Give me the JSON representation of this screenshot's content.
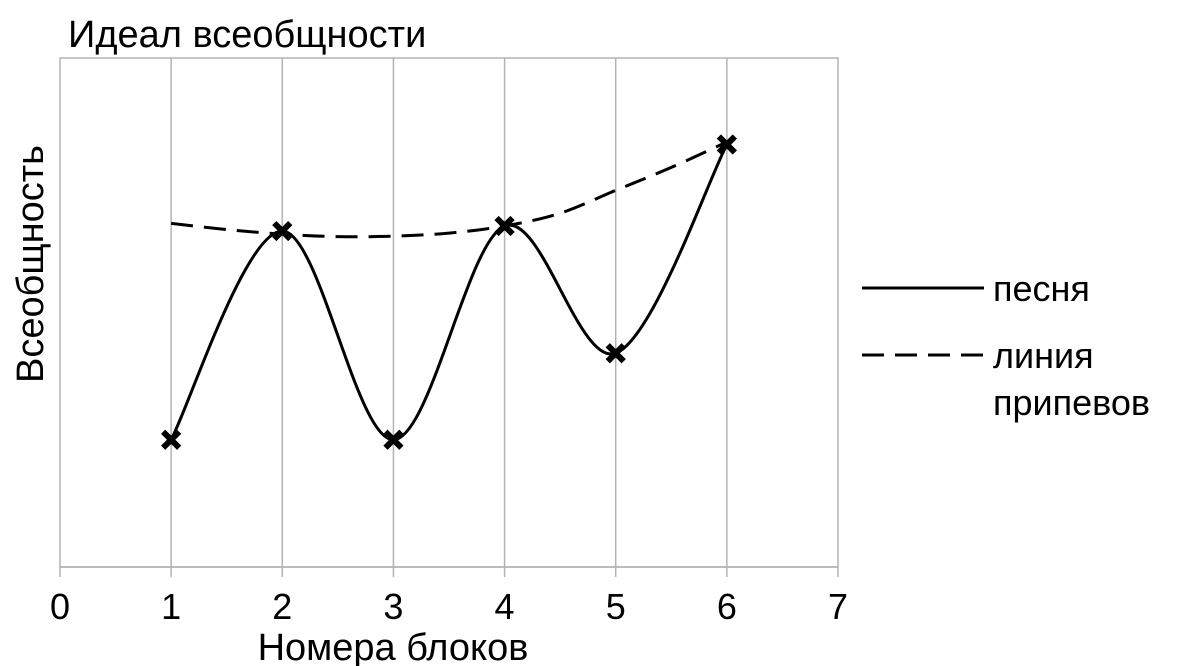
{
  "chart_data": {
    "type": "line",
    "title": "Идеал всеобщности",
    "xlabel": "Номера блоков",
    "ylabel": "Всеобщность",
    "xlim": [
      0,
      7
    ],
    "ylim": [
      0,
      10
    ],
    "xticks": [
      "0",
      "1",
      "2",
      "3",
      "4",
      "5",
      "6",
      "7"
    ],
    "grid": "vertical",
    "legend_position": "right",
    "series": [
      {
        "name": "песня",
        "style": "solid",
        "marker": "x",
        "color": "#000000",
        "x": [
          1,
          2,
          3,
          4,
          5,
          6
        ],
        "y": [
          2.5,
          6.6,
          2.5,
          6.7,
          4.2,
          8.3
        ]
      },
      {
        "name": "линия припевов",
        "style": "dashed",
        "marker": "none",
        "color": "#000000",
        "x": [
          1,
          1.5,
          2,
          2.5,
          3,
          3.5,
          4,
          4.5,
          5,
          5.5,
          6
        ],
        "y": [
          6.75,
          6.63,
          6.54,
          6.49,
          6.5,
          6.56,
          6.7,
          6.95,
          7.4,
          7.85,
          8.35
        ]
      }
    ]
  }
}
